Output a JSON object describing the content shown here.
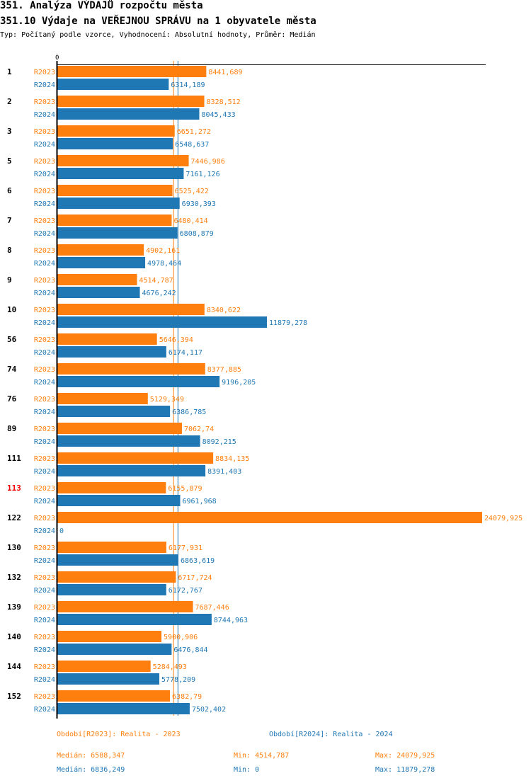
{
  "header": {
    "title": "351. Analýza VÝDAJŮ rozpočtu města",
    "subtitle": "351.10 Výdaje na VEŘEJNOU SPRÁVU na 1 obyvatele města",
    "meta": "Typ: Počítaný podle vzorce, Vyhodnocení: Absolutní hodnoty, Průměr: Medián"
  },
  "colors": {
    "r2023": "#ff7f0e",
    "r2024": "#1f77b4",
    "highlight": "#ee0000"
  },
  "chart_data": {
    "type": "bar",
    "orientation": "horizontal",
    "x_tick_labels": [
      "0"
    ],
    "xlim": [
      0,
      24079.925
    ],
    "categories": [
      "1",
      "2",
      "3",
      "5",
      "6",
      "7",
      "8",
      "9",
      "10",
      "56",
      "74",
      "76",
      "89",
      "111",
      "113",
      "122",
      "130",
      "132",
      "139",
      "140",
      "144",
      "152"
    ],
    "highlighted_category": "113",
    "series": [
      {
        "name": "R2023",
        "values": [
          8441.689,
          8328.512,
          6651.272,
          7446.986,
          6525.422,
          6480.414,
          4902.161,
          4514.787,
          8340.622,
          5646.394,
          8377.885,
          5129.349,
          7062.74,
          8834.135,
          6155.879,
          24079.925,
          6177.931,
          6717.724,
          7687.446,
          5900.906,
          5284.493,
          6382.79
        ],
        "labels": [
          "8441,689",
          "8328,512",
          "6651,272",
          "7446,986",
          "6525,422",
          "6480,414",
          "4902,161",
          "4514,787",
          "8340,622",
          "5646,394",
          "8377,885",
          "5129,349",
          "7062,74",
          "8834,135",
          "6155,879",
          "24079,925",
          "6177,931",
          "6717,724",
          "7687,446",
          "5900,906",
          "5284,493",
          "6382,79"
        ],
        "median": 6588.347
      },
      {
        "name": "R2024",
        "values": [
          6314.189,
          8045.433,
          6548.637,
          7161.126,
          6930.393,
          6808.879,
          4978.464,
          4676.242,
          11879.278,
          6174.117,
          9196.205,
          6386.785,
          8092.215,
          8391.403,
          6961.968,
          0,
          6863.619,
          6172.767,
          8744.963,
          6476.844,
          5778.209,
          7502.402
        ],
        "labels": [
          "6314,189",
          "8045,433",
          "6548,637",
          "7161,126",
          "6930,393",
          "6808,879",
          "4978,464",
          "4676,242",
          "11879,278",
          "6174,117",
          "9196,205",
          "6386,785",
          "8092,215",
          "8391,403",
          "6961,968",
          "0",
          "6863,619",
          "6172,767",
          "8744,963",
          "6476,844",
          "5778,209",
          "7502,402"
        ],
        "median": 6836.249
      }
    ]
  },
  "legend": {
    "r2023": "Období[R2023]: Realita - 2023",
    "r2024": "Období[R2024]: Realita - 2024"
  },
  "stats": {
    "r2023": {
      "median": "Medián: 6588,347",
      "min": "Min: 4514,787",
      "max": "Max: 24079,925"
    },
    "r2024": {
      "median": "Medián: 6836,249",
      "min": "Min: 0",
      "max": "Max: 11879,278"
    }
  }
}
